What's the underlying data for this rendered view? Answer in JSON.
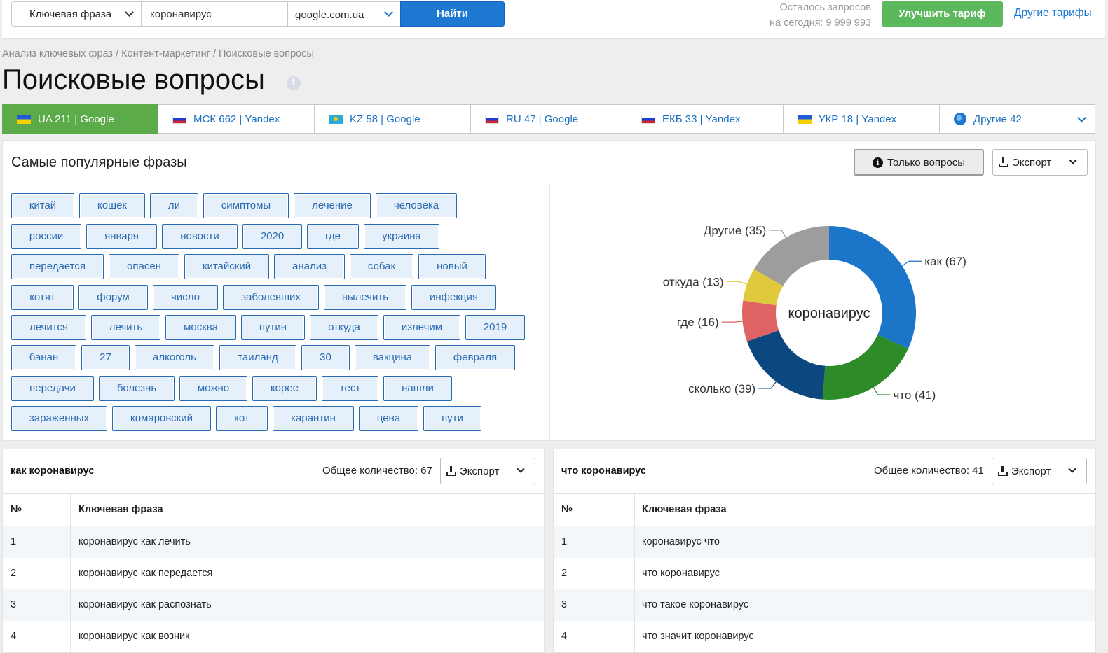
{
  "search": {
    "type_select": "Ключевая фраза",
    "query": "коронавирус",
    "domain_select": "google.com.ua",
    "find_label": "Найти",
    "remaining_line1": "Осталось запросов",
    "remaining_line2": "на сегодня: 9 999 993",
    "upgrade_label": "Улучшить тариф",
    "other_tariffs": "Другие тарифы"
  },
  "breadcrumb": "Анализ ключевых фраз / Контент-маркетинг / Поисковые вопросы",
  "page_title": "Поисковые вопросы",
  "tabs": [
    {
      "label": "UA 211 | Google",
      "flag": "ua"
    },
    {
      "label": "МСК 662 | Yandex",
      "flag": "ru"
    },
    {
      "label": "KZ 58 | Google",
      "flag": "kz"
    },
    {
      "label": "RU 47 | Google",
      "flag": "ru"
    },
    {
      "label": "ЕКБ 33 | Yandex",
      "flag": "ru"
    },
    {
      "label": "УКР 18 | Yandex",
      "flag": "ua"
    },
    {
      "label": "Другие 42",
      "flag": "globe"
    }
  ],
  "popular": {
    "title": "Самые популярные фразы",
    "only_questions": "Только вопросы",
    "export": "Экспорт",
    "tags": [
      [
        "китай",
        "кошек",
        "ли",
        "симптомы",
        "лечение",
        "человека"
      ],
      [
        "россии",
        "января",
        "новости",
        "2020",
        "где",
        "украина"
      ],
      [
        "передается",
        "опасен",
        "китайский",
        "анализ",
        "собак",
        "новый"
      ],
      [
        "котят",
        "форум",
        "число",
        "заболевших",
        "вылечить",
        "инфекция"
      ],
      [
        "лечится",
        "лечить",
        "москва",
        "путин",
        "откуда",
        "излечим",
        "2019"
      ],
      [
        "банан",
        "27",
        "алкоголь",
        "таиланд",
        "30",
        "вакцина",
        "февраля"
      ],
      [
        "передачи",
        "болезнь",
        "можно",
        "корее",
        "тест",
        "нашли"
      ],
      [
        "зараженных",
        "комаровский",
        "кот",
        "карантин",
        "цена",
        "пути"
      ]
    ]
  },
  "chart_data": {
    "type": "pie",
    "center_label": "коронавирус",
    "slices": [
      {
        "label": "как",
        "value": 67,
        "color": "#1b75c9"
      },
      {
        "label": "что",
        "value": 41,
        "color": "#2e8b2a"
      },
      {
        "label": "сколько",
        "value": 39,
        "color": "#0d477f"
      },
      {
        "label": "где",
        "value": 16,
        "color": "#de6464"
      },
      {
        "label": "откуда",
        "value": 13,
        "color": "#e0c93a"
      },
      {
        "label": "Другие",
        "value": 35,
        "color": "#9d9d9d"
      }
    ]
  },
  "tables": [
    {
      "title": "как коронавирус",
      "total": "Общее количество: 67",
      "export": "Экспорт",
      "col_num": "№",
      "col_phrase": "Ключевая фраза",
      "rows": [
        {
          "n": "1",
          "phrase": "коронавирус как лечить"
        },
        {
          "n": "2",
          "phrase": "коронавирус как передается"
        },
        {
          "n": "3",
          "phrase": "коронавирус как распознать"
        },
        {
          "n": "4",
          "phrase": "коронавирус как возник"
        }
      ]
    },
    {
      "title": "что коронавирус",
      "total": "Общее количество: 41",
      "export": "Экспорт",
      "col_num": "№",
      "col_phrase": "Ключевая фраза",
      "rows": [
        {
          "n": "1",
          "phrase": "коронавирус что"
        },
        {
          "n": "2",
          "phrase": "что коронавирус"
        },
        {
          "n": "3",
          "phrase": "что такое коронавирус"
        },
        {
          "n": "4",
          "phrase": "что значит коронавирус"
        }
      ]
    }
  ]
}
